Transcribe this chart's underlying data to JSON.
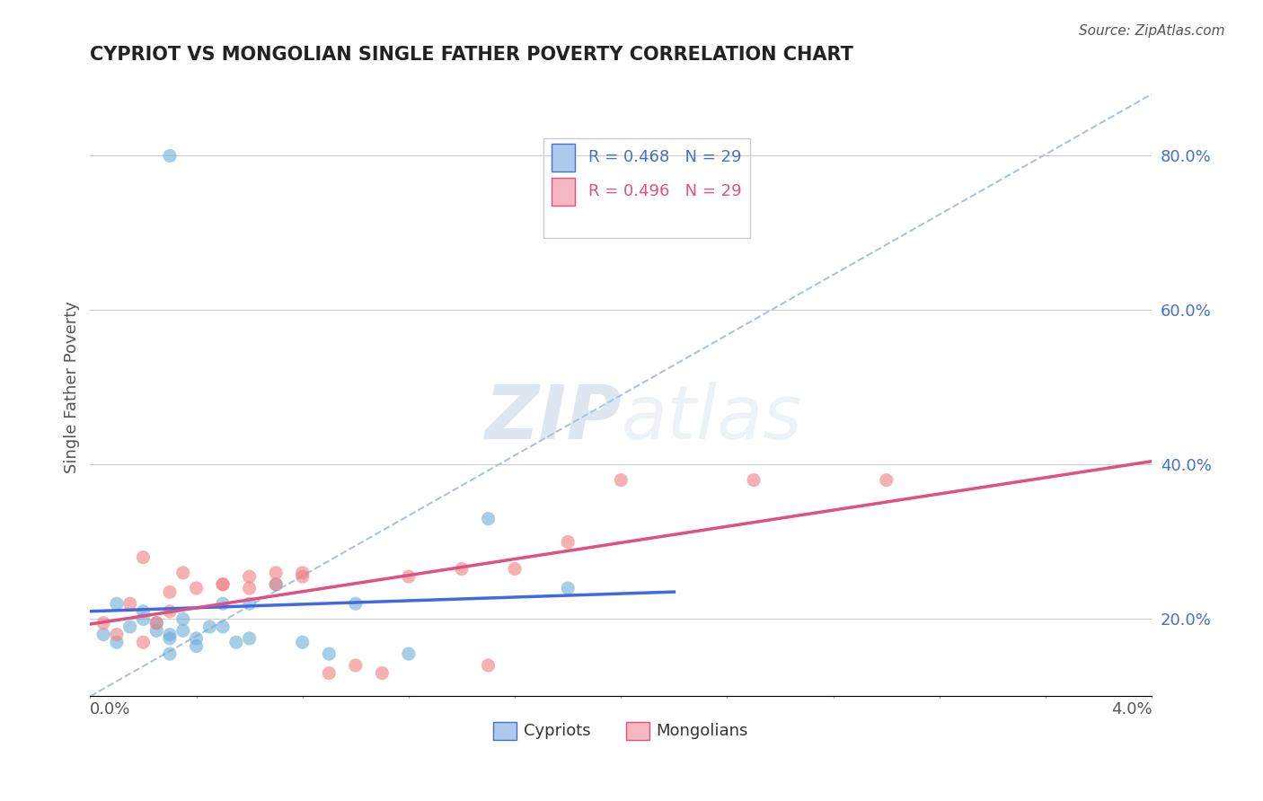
{
  "title": "CYPRIOT VS MONGOLIAN SINGLE FATHER POVERTY CORRELATION CHART",
  "source": "Source: ZipAtlas.com",
  "ylabel": "Single Father Poverty",
  "right_yticks": [
    0.2,
    0.4,
    0.6,
    0.8
  ],
  "right_yticklabels": [
    "20.0%",
    "40.0%",
    "60.0%",
    "80.0%"
  ],
  "cypriot_color": "#6baed6",
  "mongolian_color": "#f08080",
  "blue_line_color": "#4169e1",
  "pink_line_color": "#e05080",
  "dashed_line_color": "#aac4dd",
  "watermark_zip": "ZIP",
  "watermark_atlas": "atlas",
  "xlim": [
    0.0,
    0.04
  ],
  "ylim": [
    0.1,
    0.9
  ],
  "cypriot_x": [
    0.0005,
    0.001,
    0.001,
    0.0015,
    0.002,
    0.002,
    0.0025,
    0.0025,
    0.003,
    0.003,
    0.003,
    0.0035,
    0.0035,
    0.004,
    0.004,
    0.0045,
    0.005,
    0.005,
    0.0055,
    0.006,
    0.006,
    0.007,
    0.008,
    0.009,
    0.01,
    0.012,
    0.015,
    0.018,
    0.003
  ],
  "cypriot_y": [
    0.18,
    0.17,
    0.22,
    0.19,
    0.21,
    0.2,
    0.185,
    0.195,
    0.18,
    0.175,
    0.155,
    0.2,
    0.185,
    0.175,
    0.165,
    0.19,
    0.22,
    0.19,
    0.17,
    0.175,
    0.22,
    0.245,
    0.17,
    0.155,
    0.22,
    0.155,
    0.33,
    0.24,
    0.8
  ],
  "mongolian_x": [
    0.0005,
    0.001,
    0.0015,
    0.002,
    0.002,
    0.0025,
    0.003,
    0.003,
    0.0035,
    0.004,
    0.005,
    0.005,
    0.006,
    0.006,
    0.007,
    0.007,
    0.008,
    0.008,
    0.009,
    0.01,
    0.011,
    0.012,
    0.014,
    0.015,
    0.016,
    0.018,
    0.02,
    0.025,
    0.03
  ],
  "mongolian_y": [
    0.195,
    0.18,
    0.22,
    0.17,
    0.28,
    0.195,
    0.235,
    0.21,
    0.26,
    0.24,
    0.245,
    0.245,
    0.255,
    0.24,
    0.26,
    0.245,
    0.255,
    0.26,
    0.13,
    0.14,
    0.13,
    0.255,
    0.265,
    0.14,
    0.265,
    0.3,
    0.38,
    0.38,
    0.38
  ]
}
